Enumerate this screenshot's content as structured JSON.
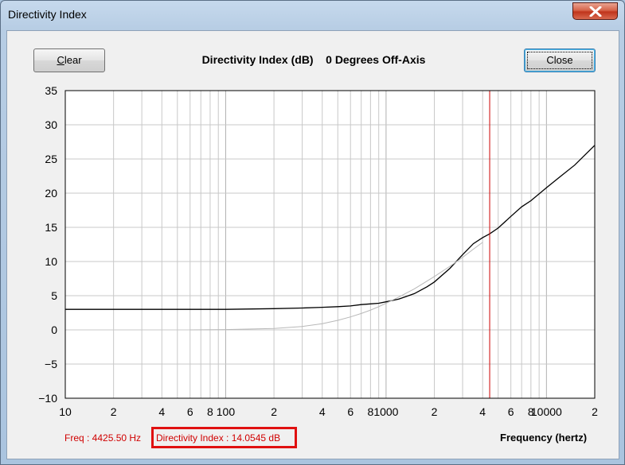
{
  "window": {
    "title": "Directivity Index"
  },
  "toolbar": {
    "clear_label": "C",
    "clear_label_rest": "lear",
    "close_label": "Close"
  },
  "readouts": {
    "freq": "Freq : 4425.50 Hz",
    "directivity": "Directivity Index : 14.0545 dB"
  },
  "colors": {
    "main_curve": "#000000",
    "reference_curve": "#b8b8b8",
    "cursor": "#cc0000",
    "grid": "#c8c8c8",
    "plot_bg": "#ffffff"
  },
  "chart_data": {
    "type": "line",
    "title": "Directivity Index (dB)    0 Degrees Off-Axis",
    "xlabel": "Frequency (hertz)",
    "ylabel": "",
    "xscale": "log",
    "xlim": [
      10,
      20000
    ],
    "ylim": [
      -10,
      35
    ],
    "grid": true,
    "y_ticks": [
      "35",
      "30",
      "25",
      "20",
      "15",
      "10",
      "5",
      "0",
      "−5",
      "−10"
    ],
    "y_tick_values": [
      35,
      30,
      25,
      20,
      15,
      10,
      5,
      0,
      -5,
      -10
    ],
    "x_ticks": [
      {
        "value": 10,
        "label": "10"
      },
      {
        "value": 20,
        "label": "2"
      },
      {
        "value": 40,
        "label": "4"
      },
      {
        "value": 60,
        "label": "6"
      },
      {
        "value": 80,
        "label": "8"
      },
      {
        "value": 100,
        "label": "100"
      },
      {
        "value": 200,
        "label": "2"
      },
      {
        "value": 400,
        "label": "4"
      },
      {
        "value": 600,
        "label": "6"
      },
      {
        "value": 800,
        "label": "8"
      },
      {
        "value": 1000,
        "label": "1000"
      },
      {
        "value": 2000,
        "label": "2"
      },
      {
        "value": 4000,
        "label": "4"
      },
      {
        "value": 6000,
        "label": "6"
      },
      {
        "value": 8000,
        "label": "8"
      },
      {
        "value": 10000,
        "label": "10000"
      },
      {
        "value": 20000,
        "label": "2"
      }
    ],
    "cursor_x": 4425.5,
    "series": [
      {
        "role": "main",
        "x": [
          10,
          20,
          50,
          100,
          200,
          300,
          400,
          500,
          600,
          700,
          800,
          900,
          1000,
          1200,
          1500,
          1800,
          2000,
          2500,
          3000,
          3500,
          4000,
          4425.5,
          5000,
          6000,
          7000,
          8000,
          10000,
          12000,
          15000,
          20000
        ],
        "y": [
          3.0,
          3.0,
          3.0,
          3.0,
          3.1,
          3.2,
          3.3,
          3.4,
          3.5,
          3.7,
          3.8,
          3.9,
          4.1,
          4.5,
          5.3,
          6.3,
          7.0,
          9.0,
          11.0,
          12.6,
          13.5,
          14.05,
          14.9,
          16.6,
          18.0,
          18.9,
          20.8,
          22.3,
          24.1,
          27.0
        ]
      },
      {
        "role": "reference",
        "x": [
          60,
          100,
          200,
          300,
          400,
          500,
          600,
          700,
          800,
          900,
          1000,
          1200,
          1500,
          2000,
          2500,
          3000,
          3500,
          4000
        ],
        "y": [
          0,
          0.05,
          0.2,
          0.5,
          0.9,
          1.4,
          1.9,
          2.4,
          2.9,
          3.4,
          3.9,
          4.8,
          6.0,
          7.8,
          9.3,
          10.6,
          11.8,
          12.8
        ]
      }
    ]
  }
}
